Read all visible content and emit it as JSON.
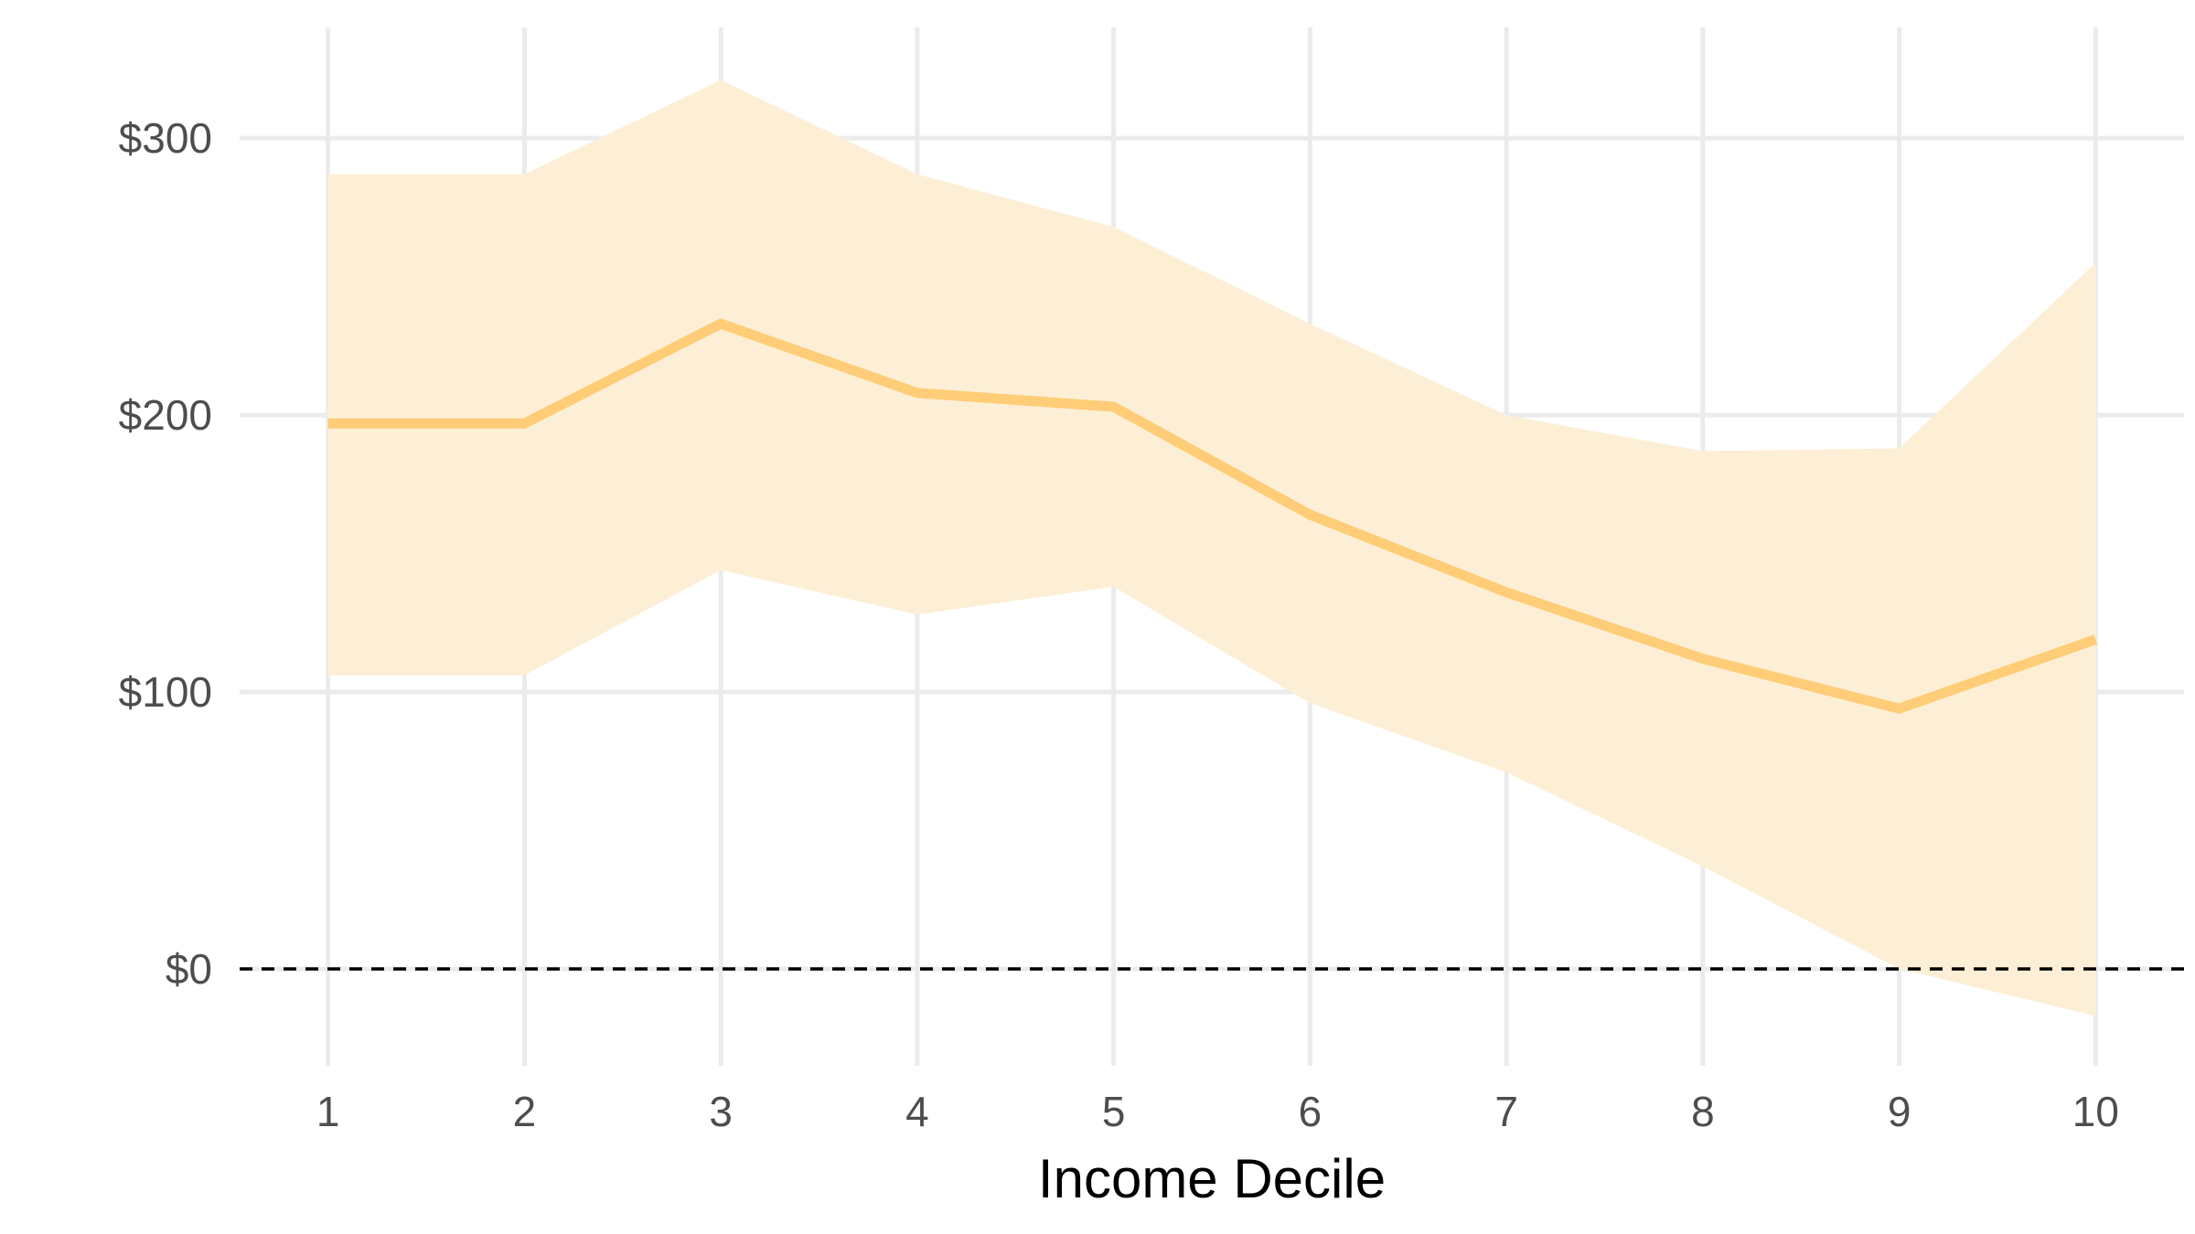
{
  "chart_data": {
    "type": "line",
    "title": "",
    "xlabel": "Income Decile",
    "ylabel": "",
    "x": [
      1,
      2,
      3,
      4,
      5,
      6,
      7,
      8,
      9,
      10
    ],
    "x_tick_labels": [
      "1",
      "2",
      "3",
      "4",
      "5",
      "6",
      "7",
      "8",
      "9",
      "10"
    ],
    "y_ticks": [
      0,
      100,
      200,
      300
    ],
    "y_tick_labels": [
      "$0",
      "$100",
      "$200",
      "$300"
    ],
    "xlim": [
      0.55,
      10.45
    ],
    "ylim": [
      -35,
      340
    ],
    "grid": true,
    "legend": "none",
    "reference_line": {
      "y": 0,
      "style": "dashed",
      "color": "#000000"
    },
    "series": [
      {
        "values": [
          197,
          197,
          233,
          208,
          203,
          164,
          136,
          112,
          94,
          119
        ],
        "lower": [
          106,
          106,
          144,
          128,
          138,
          96,
          71,
          37,
          0,
          -17
        ],
        "upper": [
          287,
          287,
          321,
          287,
          268,
          233,
          200,
          187,
          188,
          255
        ],
        "color": "#ffcc77",
        "band_color": "#fdefd5"
      }
    ]
  }
}
